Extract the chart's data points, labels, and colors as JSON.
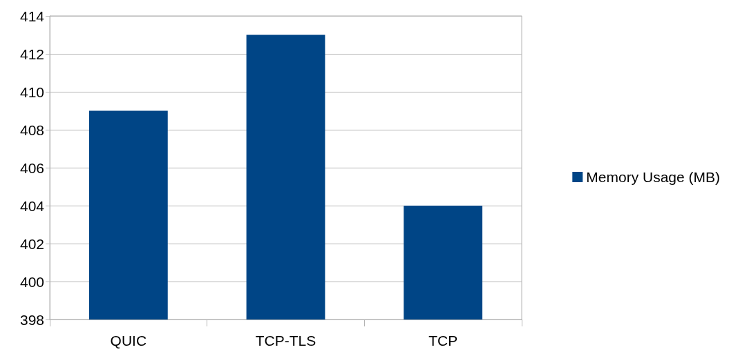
{
  "chart_data": {
    "type": "bar",
    "categories": [
      "QUIC",
      "TCP-TLS",
      "TCP"
    ],
    "series": [
      {
        "name": "Memory Usage (MB)",
        "color": "#004586",
        "values": [
          409,
          413,
          404
        ]
      }
    ],
    "ylim": [
      398,
      414
    ],
    "yticks": [
      398,
      400,
      402,
      404,
      406,
      408,
      410,
      412,
      414
    ],
    "grid": "y",
    "legend": "right"
  }
}
